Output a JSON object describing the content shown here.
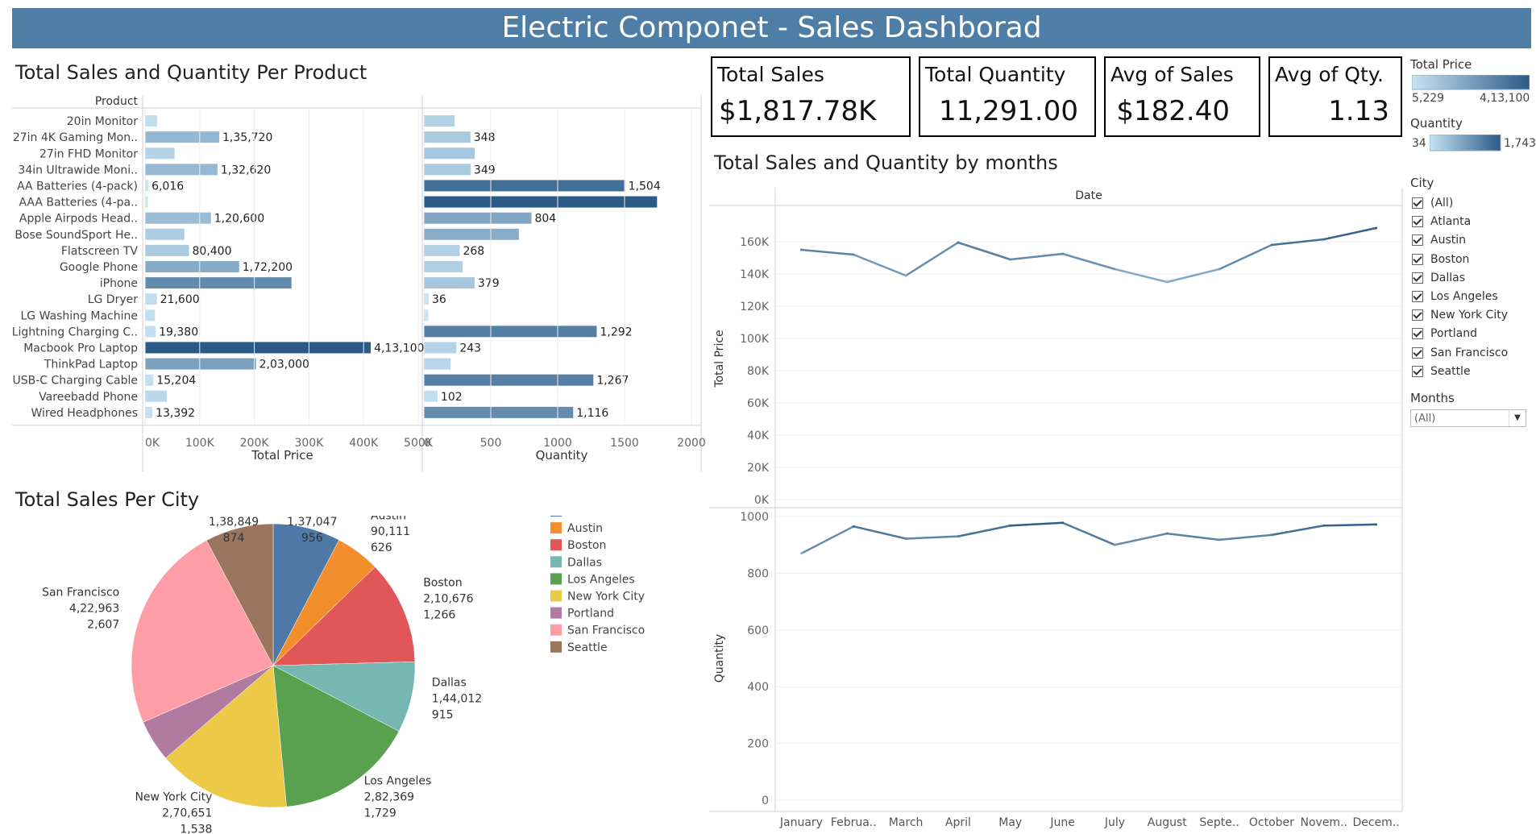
{
  "dashboard": {
    "title": "Electric Componet  - Sales Dashborad"
  },
  "kpis": [
    {
      "label": "Total Sales",
      "value": "$1,817.78K"
    },
    {
      "label": "Total Quantity",
      "value": "11,291.00"
    },
    {
      "label": "Avg of Sales",
      "value": "$182.40"
    },
    {
      "label": "Avg of Qty.",
      "value": "1.13"
    }
  ],
  "color_legends": {
    "total_price": {
      "title": "Total Price",
      "min": "5,229",
      "max": "4,13,100"
    },
    "quantity": {
      "title": "Quantity",
      "min": "34",
      "max": "1,743"
    }
  },
  "filters": {
    "city": {
      "title": "City",
      "items": [
        "(All)",
        "Atlanta",
        "Austin",
        "Boston",
        "Dallas",
        "Los Angeles",
        "New York City",
        "Portland",
        "San Francisco",
        "Seattle"
      ]
    },
    "months": {
      "title": "Months",
      "selected": "(All)"
    }
  },
  "colors": {
    "banner": "#4e7da6",
    "bar_light": "#a6cfeb",
    "bar_dark": "#2b5a87"
  },
  "chart_data": [
    {
      "type": "bar",
      "title": "Total Sales and Quantity Per Product",
      "orientation": "horizontal",
      "row_header": "Product",
      "categories": [
        "20in Monitor",
        "27in 4K Gaming Mon..",
        "27in FHD Monitor",
        "34in Ultrawide Moni..",
        "AA Batteries (4-pack)",
        "AAA Batteries (4-pa..",
        "Apple Airpods Head..",
        "Bose SoundSport He..",
        "Flatscreen TV",
        "Google Phone",
        "iPhone",
        "LG Dryer",
        "LG Washing Machine",
        "Lightning Charging C..",
        "Macbook Pro Laptop",
        "ThinkPad Laptop",
        "USB-C Charging Cable",
        "Vareebadd Phone",
        "Wired Headphones"
      ],
      "series": [
        {
          "name": "Total Price",
          "values": [
            22000,
            135720,
            54000,
            132620,
            6016,
            5229,
            120600,
            72000,
            80400,
            172200,
            268000,
            21600,
            18000,
            19380,
            413100,
            203000,
            15204,
            40000,
            13392
          ],
          "labels": [
            "",
            "1,35,720",
            "",
            "1,32,620",
            "6,016",
            "",
            "1,20,600",
            "",
            "80,400",
            "1,72,200",
            "",
            "21,600",
            "",
            "19,380",
            "4,13,100",
            "2,03,000",
            "15,204",
            "",
            "13,392"
          ],
          "xlabel": "Total Price",
          "ticks": [
            "0K",
            "100K",
            "200K",
            "300K",
            "400K",
            "500K"
          ],
          "xlim": [
            0,
            500000
          ]
        },
        {
          "name": "Quantity",
          "values": [
            230,
            348,
            380,
            349,
            1504,
            1743,
            804,
            710,
            268,
            290,
            379,
            36,
            34,
            1292,
            243,
            200,
            1267,
            102,
            1116
          ],
          "labels": [
            "",
            "348",
            "",
            "349",
            "1,504",
            "",
            "804",
            "",
            "268",
            "",
            "379",
            "36",
            "",
            "1,292",
            "243",
            "",
            "1,267",
            "102",
            "1,116"
          ],
          "xlabel": "Quantity",
          "ticks": [
            "0",
            "500",
            "1000",
            "1500",
            "2000"
          ],
          "xlim": [
            0,
            2000
          ]
        }
      ]
    },
    {
      "type": "pie",
      "title": "Total Sales Per City",
      "legend_title": "City",
      "slices": [
        {
          "name": "Atlanta",
          "value": 137047,
          "value_label": "1,37,047",
          "qty_label": "956",
          "color": "#4e79a7"
        },
        {
          "name": "Austin",
          "value": 90111,
          "value_label": "90,111",
          "qty_label": "626",
          "color": "#f28e2b"
        },
        {
          "name": "Boston",
          "value": 210676,
          "value_label": "2,10,676",
          "qty_label": "1,266",
          "color": "#e15759"
        },
        {
          "name": "Dallas",
          "value": 144012,
          "value_label": "1,44,012",
          "qty_label": "915",
          "color": "#76b7b2"
        },
        {
          "name": "Los Angeles",
          "value": 282369,
          "value_label": "2,82,369",
          "qty_label": "1,729",
          "color": "#59a14f"
        },
        {
          "name": "New York City",
          "value": 270651,
          "value_label": "2,70,651",
          "qty_label": "1,538",
          "color": "#edc948"
        },
        {
          "name": "Portland",
          "value": 85000,
          "value_label": "",
          "qty_label": "",
          "color": "#b07aa1"
        },
        {
          "name": "San Francisco",
          "value": 422963,
          "value_label": "4,22,963",
          "qty_label": "2,607",
          "color": "#ff9da7"
        },
        {
          "name": "Seattle",
          "value": 138849,
          "value_label": "1,38,849",
          "qty_label": "874",
          "color": "#9c755f"
        }
      ]
    },
    {
      "type": "line",
      "title": "Total Sales and Quantity by months",
      "column_header": "Date",
      "x": [
        "January",
        "Februa..",
        "March",
        "April",
        "May",
        "June",
        "July",
        "August",
        "Septe..",
        "October",
        "Novem..",
        "Decem.."
      ],
      "series": [
        {
          "name": "Total Price",
          "values": [
            155000,
            152000,
            139000,
            159500,
            149000,
            152500,
            143000,
            135000,
            143000,
            158000,
            161500,
            168500
          ],
          "ylabel": "Total Price",
          "ticks": [
            "0K",
            "20K",
            "40K",
            "60K",
            "80K",
            "100K",
            "120K",
            "140K",
            "160K"
          ],
          "ylim": [
            0,
            175000
          ]
        },
        {
          "name": "Quantity",
          "values": [
            870,
            965,
            922,
            930,
            968,
            978,
            900,
            940,
            918,
            935,
            968,
            972
          ],
          "ylabel": "Quantity",
          "ticks": [
            "0",
            "200",
            "400",
            "600",
            "800",
            "1000"
          ],
          "ylim": [
            0,
            1000
          ]
        }
      ],
      "grid": true
    }
  ]
}
